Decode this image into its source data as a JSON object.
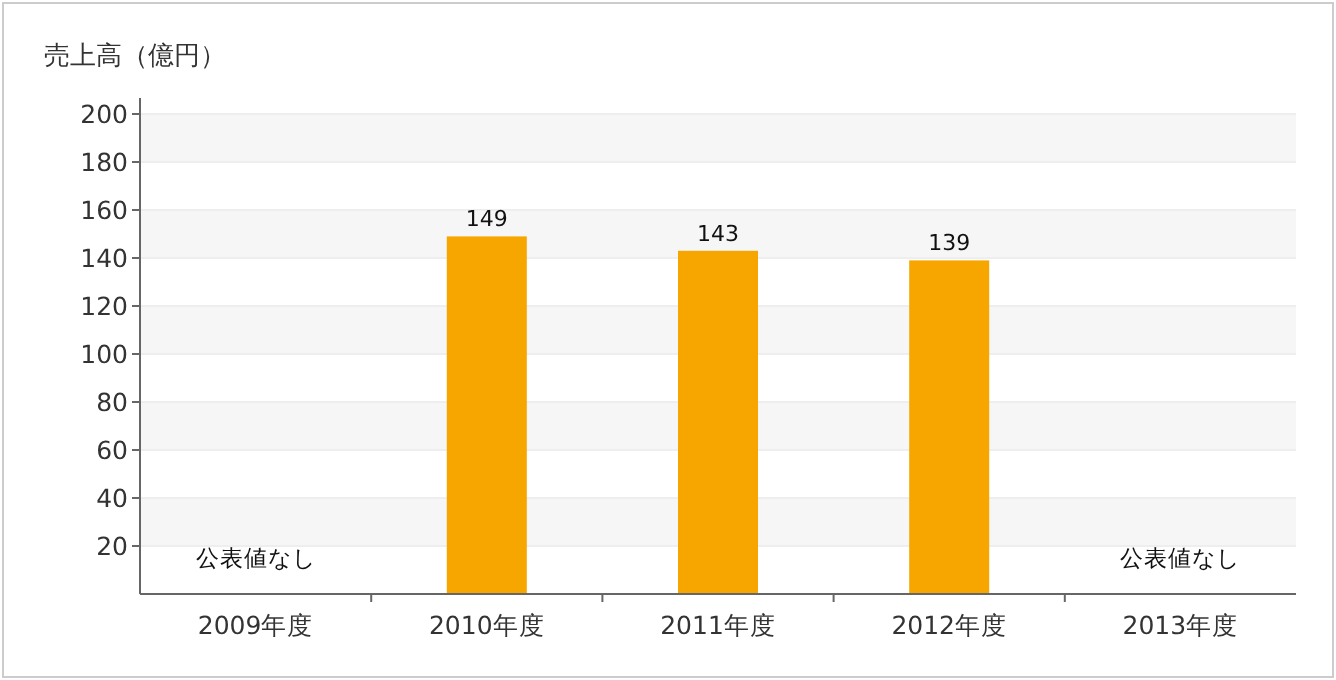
{
  "chart_data": {
    "type": "bar",
    "ylabel": "売上高（億円）",
    "categories": [
      "2009年度",
      "2010年度",
      "2011年度",
      "2012年度",
      "2013年度"
    ],
    "values": [
      null,
      149,
      143,
      139,
      null
    ],
    "color": "#f7a600",
    "ylim": [
      0,
      200
    ],
    "yticks": [
      20,
      40,
      60,
      80,
      100,
      120,
      140,
      160,
      180,
      200
    ],
    "grid": "y",
    "data_labels": true,
    "annotations": [
      "公表値なし",
      "公表値なし"
    ]
  }
}
